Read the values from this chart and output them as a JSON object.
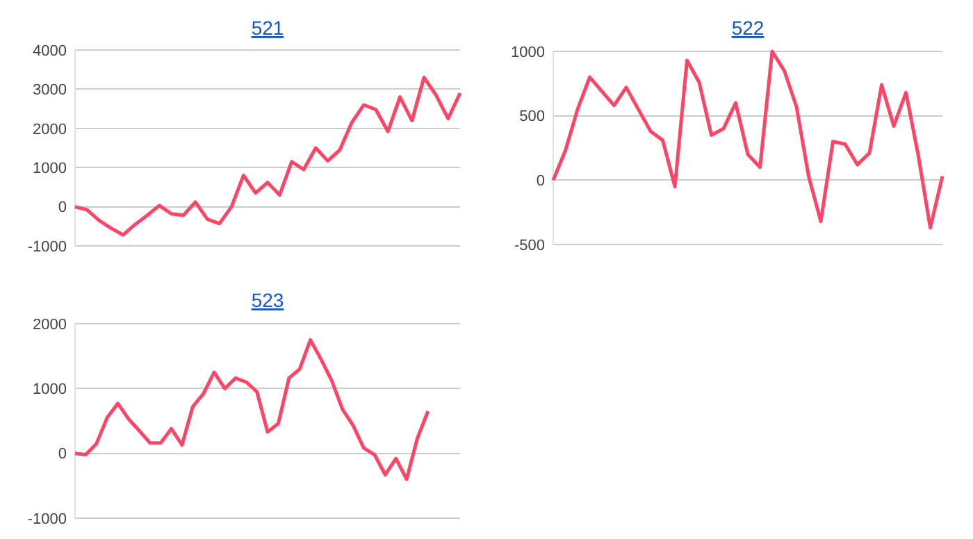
{
  "chart_data": [
    {
      "type": "line",
      "title": "521",
      "categories": [
        null,
        null,
        null,
        null,
        null,
        null,
        null,
        null,
        null,
        null,
        null,
        null,
        null,
        null,
        null,
        null,
        null,
        null,
        null,
        null,
        null,
        null,
        null,
        null,
        null,
        null,
        null,
        null,
        null,
        null,
        null,
        null,
        null
      ],
      "ylim": [
        -1000,
        4000
      ],
      "yticks": [
        -1000,
        0,
        1000,
        2000,
        3000,
        4000
      ],
      "grid": "y",
      "tick_labels": "y",
      "series": [
        {
          "color": "#ff4466",
          "values": [
            0,
            -80,
            -350,
            -550,
            -720,
            -450,
            -220,
            30,
            -180,
            -220,
            120,
            -320,
            -430,
            0,
            800,
            350,
            620,
            300,
            1150,
            950,
            1500,
            1170,
            1450,
            2150,
            2600,
            2480,
            1920,
            2800,
            2200,
            3300,
            2850,
            2250,
            2900
          ]
        }
      ]
    },
    {
      "type": "line",
      "title": "522",
      "categories": [
        null,
        null,
        null,
        null,
        null,
        null,
        null,
        null,
        null,
        null,
        null,
        null,
        null,
        null,
        null,
        null,
        null,
        null,
        null,
        null,
        null,
        null,
        null,
        null,
        null,
        null,
        null,
        null,
        null,
        null,
        null,
        null,
        null
      ],
      "ylim": [
        -500,
        1000
      ],
      "yticks": [
        -500,
        0,
        500,
        1000
      ],
      "grid": "y",
      "tick_labels": "y",
      "series": [
        {
          "color": "#ff4466",
          "values": [
            0,
            230,
            550,
            800,
            690,
            580,
            720,
            550,
            380,
            310,
            -50,
            930,
            760,
            350,
            400,
            600,
            200,
            100,
            1000,
            850,
            570,
            30,
            -320,
            300,
            280,
            120,
            210,
            740,
            420,
            680,
            200,
            -370,
            30
          ]
        }
      ]
    },
    {
      "type": "line",
      "title": "523",
      "categories": [
        null,
        null,
        null,
        null,
        null,
        null,
        null,
        null,
        null,
        null,
        null,
        null,
        null,
        null,
        null,
        null,
        null,
        null,
        null,
        null,
        null,
        null,
        null,
        null,
        null,
        null,
        null,
        null,
        null,
        null,
        null,
        null,
        null,
        null,
        null,
        null,
        null
      ],
      "ylim": [
        -1000,
        2000
      ],
      "yticks": [
        -1000,
        0,
        1000,
        2000
      ],
      "grid": "y",
      "tick_labels": "y",
      "series": [
        {
          "color": "#ff4466",
          "values": [
            0,
            -20,
            150,
            550,
            770,
            530,
            350,
            160,
            160,
            380,
            130,
            720,
            920,
            1250,
            1000,
            1160,
            1100,
            950,
            330,
            460,
            1160,
            1300,
            1750,
            1450,
            1120,
            680,
            430,
            80,
            -20,
            -330,
            -80,
            -400,
            230,
            650,
            null,
            null,
            null
          ]
        }
      ]
    }
  ]
}
